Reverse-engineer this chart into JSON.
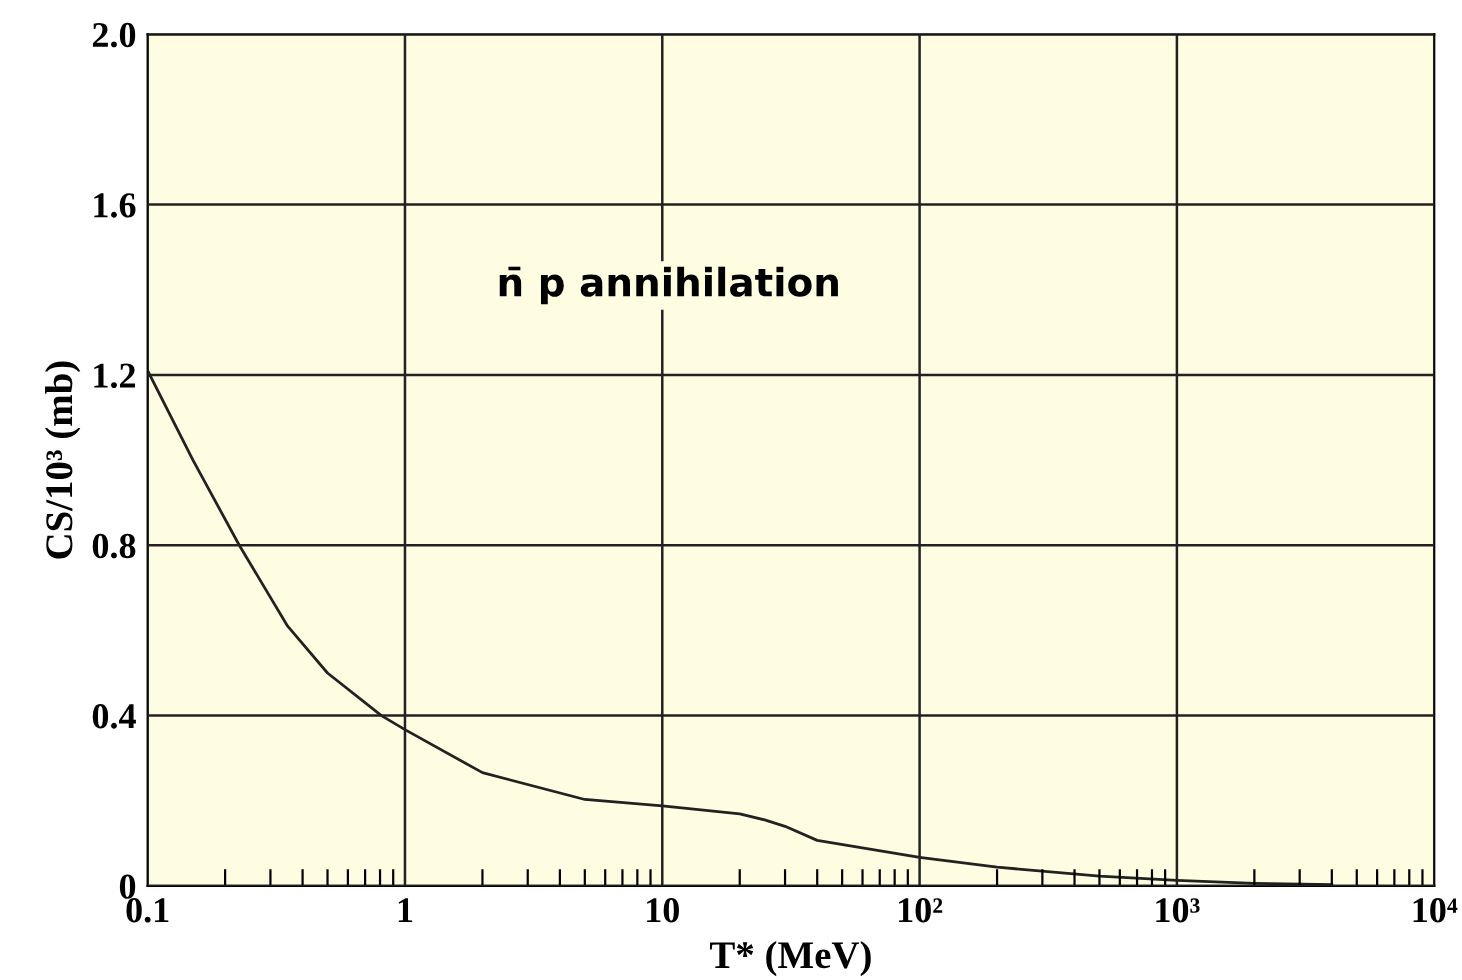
{
  "chart_data": {
    "type": "line",
    "xlabel": "T* (MeV)",
    "ylabel": "CS/10³ (mb)",
    "annotations": [
      "n̄ p annihilation"
    ],
    "log": "x",
    "grid": true,
    "marker": "none",
    "line_style": "solid",
    "xlim": [
      0.1,
      10000
    ],
    "ylim": [
      0,
      2.0
    ],
    "xticks": [
      0.1,
      1,
      10,
      {
        "value": 100,
        "label": "10²"
      },
      {
        "value": 1000,
        "label": "10³"
      },
      {
        "value": 10000,
        "label": "10⁴"
      }
    ],
    "yticks": [
      0,
      0.4,
      0.8,
      1.2,
      1.6,
      {
        "value": 2,
        "label": "2.0"
      }
    ],
    "series": [
      {
        "color": "#222222",
        "x": [
          0.1,
          0.15,
          0.227,
          0.35,
          0.5,
          0.81,
          1,
          2,
          5,
          10,
          20,
          25,
          30,
          40,
          100,
          200,
          500,
          1000,
          2000,
          4000
        ],
        "values": [
          1.21,
          1.0,
          0.8,
          0.61,
          0.5,
          0.4,
          0.367,
          0.266,
          0.203,
          0.188,
          0.169,
          0.155,
          0.14,
          0.107,
          0.067,
          0.044,
          0.023,
          0.013,
          0.006,
          0.003
        ]
      }
    ]
  }
}
